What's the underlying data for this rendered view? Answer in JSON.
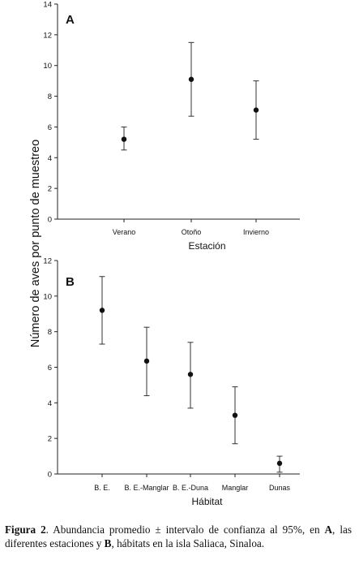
{
  "chart_data": [
    {
      "type": "scatter",
      "panel_label": "A",
      "categories": [
        "Verano",
        "Otoño",
        "Invierno"
      ],
      "values": [
        5.2,
        9.1,
        7.1
      ],
      "ci_lower": [
        4.5,
        6.7,
        5.2
      ],
      "ci_upper": [
        6.0,
        11.5,
        9.0
      ],
      "xlabel": "Estación",
      "ylabel": "Número de aves por punto de muestreo",
      "ylim": [
        0,
        14
      ],
      "yticks": [
        "0",
        "2",
        "4",
        "6",
        "8",
        "10",
        "12",
        "14"
      ],
      "grid": false,
      "legend": "none"
    },
    {
      "type": "scatter",
      "panel_label": "B",
      "categories": [
        "B. E.",
        "B. E.-Manglar",
        "B. E.-Duna",
        "Manglar",
        "Dunas"
      ],
      "values": [
        9.2,
        6.35,
        5.6,
        3.3,
        0.6
      ],
      "ci_lower": [
        7.3,
        4.4,
        3.7,
        1.7,
        0.1
      ],
      "ci_upper": [
        11.1,
        8.25,
        7.4,
        4.9,
        1.0
      ],
      "xlabel": "Hábitat",
      "ylabel": "Número de aves por punto de muestreo",
      "ylim": [
        0,
        12
      ],
      "yticks": [
        "0",
        "2",
        "4",
        "6",
        "8",
        "10",
        "12"
      ],
      "grid": false,
      "legend": "none"
    }
  ],
  "caption": {
    "label": "Figura 2",
    "part1": ". Abundancia promedio ± intervalo de confianza al 95%, en ",
    "a": "A",
    "part2": ", las diferentes estaciones y ",
    "b": "B",
    "part3": ", hábitats en la isla Saliaca, Sinaloa."
  }
}
